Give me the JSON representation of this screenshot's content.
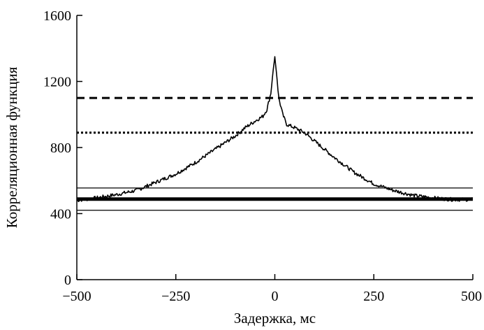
{
  "chart_data": {
    "type": "line",
    "xlabel": "Задержка, мс",
    "ylabel": "Корреляционная функция",
    "xlim": [
      -500,
      500
    ],
    "ylim": [
      0,
      1600
    ],
    "xticks": [
      -500,
      -250,
      0,
      250,
      500
    ],
    "yticks": [
      0,
      400,
      800,
      1200,
      1600
    ],
    "xtick_labels": [
      "−500",
      "−250",
      "0",
      "250",
      "500"
    ],
    "ytick_labels": [
      "0",
      "400",
      "800",
      "1200",
      "1600"
    ],
    "grid": false,
    "series": [
      {
        "style": "solid-thin",
        "x": [
          -500,
          -450,
          -400,
          -350,
          -300,
          -250,
          -200,
          -150,
          -100,
          -75,
          -50,
          -30,
          -20,
          -10,
          -5,
          0,
          5,
          10,
          20,
          30,
          50,
          75,
          100,
          150,
          200,
          250,
          300,
          350,
          400,
          450,
          500
        ],
        "y": [
          480,
          495,
          515,
          540,
          590,
          640,
          710,
          790,
          870,
          920,
          960,
          990,
          1030,
          1130,
          1250,
          1350,
          1230,
          1100,
          1000,
          940,
          920,
          890,
          840,
          740,
          650,
          580,
          540,
          510,
          495,
          485,
          485
        ]
      }
    ],
    "reference_lines": [
      {
        "y": 1100,
        "style": "dashed"
      },
      {
        "y": 890,
        "style": "dotted"
      },
      {
        "y": 555,
        "style": "thin"
      },
      {
        "y": 488,
        "style": "thick"
      },
      {
        "y": 420,
        "style": "thin"
      }
    ]
  }
}
